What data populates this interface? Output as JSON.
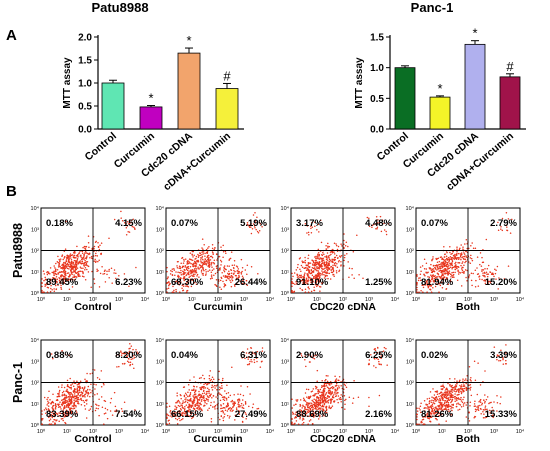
{
  "panel_a_letter": "A",
  "panel_b_letter": "B",
  "chart_data": [
    {
      "type": "bar",
      "title": "Patu8988",
      "ylabel": "MTT  assay",
      "xlabel": "",
      "categories": [
        "Control",
        "Curcumin",
        "Cdc20 cDNA",
        "cDNA+Curcumin"
      ],
      "values": [
        1.0,
        0.48,
        1.65,
        0.88
      ],
      "errors": [
        0.06,
        0.03,
        0.11,
        0.11
      ],
      "annotations": [
        "",
        "*",
        "*",
        "#"
      ],
      "colors": [
        "#5fe6b3",
        "#c000c0",
        "#f2a46c",
        "#f5f03a"
      ],
      "ylim": [
        0,
        2.0
      ],
      "yticks": [
        "0.0",
        "0.5",
        "1.0",
        "1.5",
        "2.0"
      ]
    },
    {
      "type": "bar",
      "title": "Panc-1",
      "ylabel": "MTT  assay",
      "xlabel": "",
      "categories": [
        "Control",
        "Curcumin",
        "Cdc20 cDNA",
        "cDNA+Curcumin"
      ],
      "values": [
        1.0,
        0.52,
        1.38,
        0.85
      ],
      "errors": [
        0.03,
        0.02,
        0.06,
        0.05
      ],
      "annotations": [
        "",
        "*",
        "*",
        "#"
      ],
      "colors": [
        "#0a6e24",
        "#f5f528",
        "#b0b0ee",
        "#a0134a"
      ],
      "ylim": [
        0,
        1.5
      ],
      "yticks": [
        "0.0",
        "0.5",
        "1.0",
        "1.5"
      ]
    }
  ],
  "flow": {
    "axis_ticks": [
      "10⁰",
      "10¹",
      "10²",
      "10³",
      "10⁴"
    ],
    "rows": [
      {
        "label": "Patu8988",
        "plots": [
          {
            "name": "Control",
            "q": [
              "0.18%",
              "4.15%",
              "89.45%",
              "6.23%"
            ]
          },
          {
            "name": "Curcumin",
            "q": [
              "0.07%",
              "5.19%",
              "68.30%",
              "26.44%"
            ]
          },
          {
            "name": "CDC20  cDNA",
            "q": [
              "3.17%",
              "4.48%",
              "91.10%",
              "1.25%"
            ]
          },
          {
            "name": "Both",
            "q": [
              "0.07%",
              "2.79%",
              "81.94%",
              "15.20%"
            ]
          }
        ]
      },
      {
        "label": "Panc-1",
        "plots": [
          {
            "name": "Control",
            "q": [
              "0.88%",
              "8.20%",
              "83.39%",
              "7.54%"
            ]
          },
          {
            "name": "Curcumin",
            "q": [
              "0.04%",
              "6.31%",
              "66.15%",
              "27.49%"
            ]
          },
          {
            "name": "CDC20   cDNA",
            "q": [
              "2.90%",
              "6.25%",
              "88.69%",
              "2.16%"
            ]
          },
          {
            "name": "Both",
            "q": [
              "0.02%",
              "3.39%",
              "81.26%",
              "15.33%"
            ]
          }
        ]
      }
    ]
  },
  "colors": {
    "dots": "#e8341c"
  }
}
